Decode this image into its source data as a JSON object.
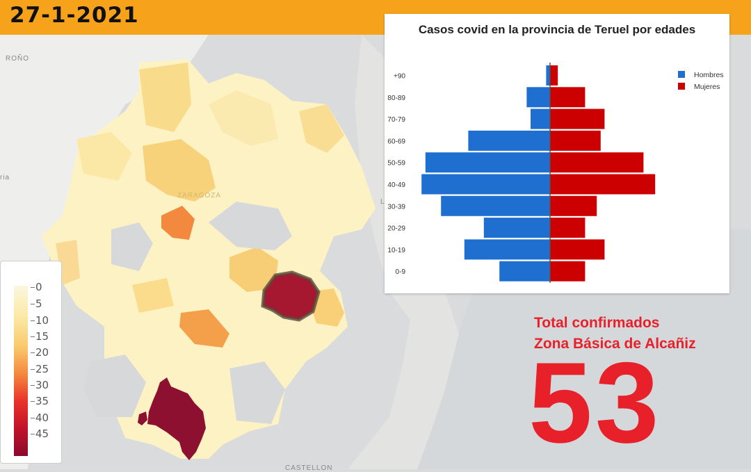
{
  "header": {
    "date": "27-1-2021"
  },
  "map": {
    "labels": {
      "top_left": "ROÑO",
      "city": "ZARAGOZA",
      "bottom": "CASTELLON",
      "left_edge": "ria",
      "right_edge": "L"
    }
  },
  "legend": {
    "ticks": [
      "0",
      "5",
      "10",
      "15",
      "20",
      "25",
      "30",
      "35",
      "40",
      "45"
    ],
    "colors": [
      "#fbf7df",
      "#fbe9a6",
      "#f9c96b",
      "#f4873e",
      "#e9322a",
      "#c1132a",
      "#8b0a2c"
    ]
  },
  "chart_data": {
    "type": "bar",
    "orientation": "horizontal",
    "title": "Casos covid en la provincia de Teruel por edades",
    "categories": [
      "+90",
      "80-89",
      "70-79",
      "60-69",
      "50-59",
      "40-49",
      "30-39",
      "20-29",
      "10-19",
      "0-9"
    ],
    "series": [
      {
        "name": "Hombres",
        "color": "#1f6fd1",
        "values": [
          1,
          6,
          5,
          21,
          32,
          33,
          28,
          17,
          22,
          13
        ]
      },
      {
        "name": "Mujeres",
        "color": "#cc0000",
        "values": [
          2,
          9,
          14,
          13,
          24,
          27,
          12,
          9,
          14,
          9
        ]
      }
    ],
    "xlim": [
      -35,
      35
    ],
    "legend_position": "top-right",
    "grid": false
  },
  "summary": {
    "label_line1": "Total confirmados",
    "label_line2": "Zona Básica de Alcañiz",
    "total": "53",
    "color": "#e8202a"
  }
}
